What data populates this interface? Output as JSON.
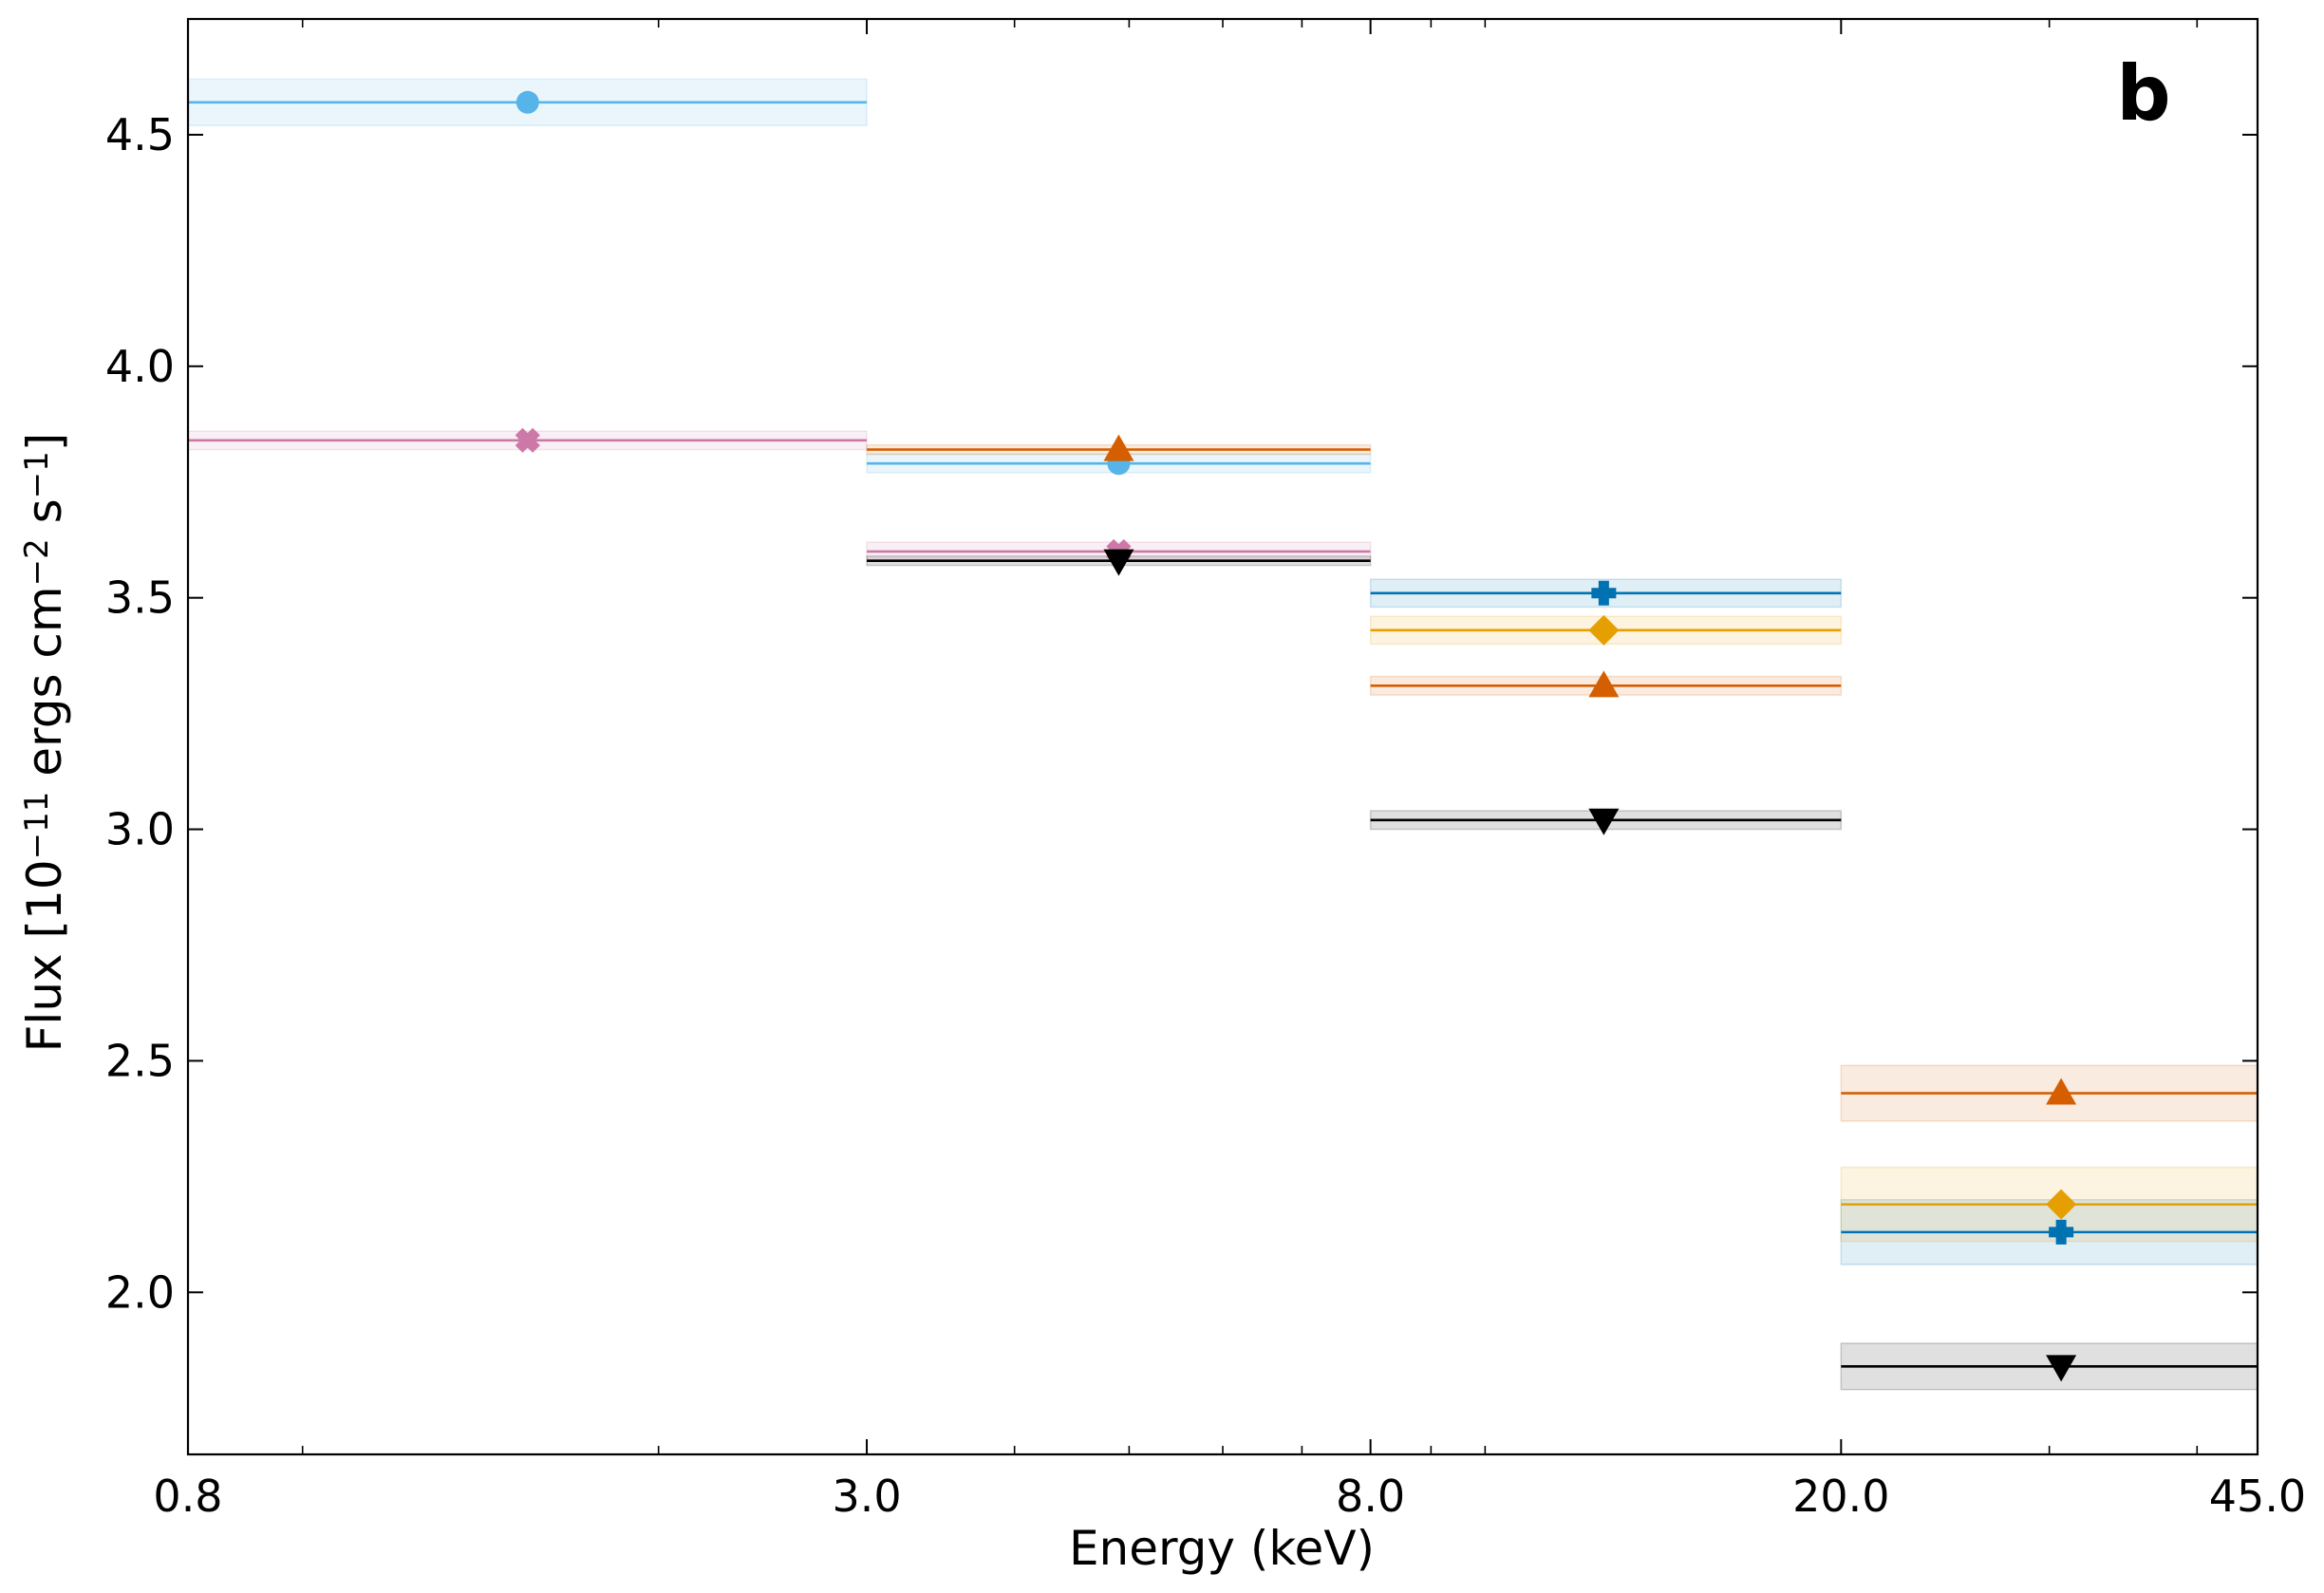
{
  "chart_data": {
    "type": "scatter",
    "panel_label": "b",
    "xlabel": "Energy (keV)",
    "ylabel": "Flux [10⁻¹¹ ergs cm⁻² s⁻¹]",
    "x_scale": "log",
    "xlim": [
      0.8,
      45.0
    ],
    "ylim": [
      1.65,
      4.75
    ],
    "x_ticks": [
      0.8,
      3.0,
      8.0,
      20.0,
      45.0
    ],
    "x_tick_labels": [
      "0.8",
      "3.0",
      "8.0",
      "20.0",
      "45.0"
    ],
    "x_minor_ticks": [
      1,
      2,
      4,
      5,
      6,
      7,
      9,
      10,
      30,
      40
    ],
    "y_ticks": [
      2.0,
      2.5,
      3.0,
      3.5,
      4.0,
      4.5
    ],
    "y_tick_labels": [
      "2.0",
      "2.5",
      "3.0",
      "3.5",
      "4.0",
      "4.5"
    ],
    "grid": false,
    "series": [
      {
        "color": "#56b4e9",
        "marker": "circle",
        "points": [
          {
            "x": 1.55,
            "xmin": 0.8,
            "xmax": 3.0,
            "y": 4.57,
            "ylo": 4.52,
            "yhi": 4.62
          },
          {
            "x": 4.9,
            "xmin": 3.0,
            "xmax": 8.0,
            "y": 3.79,
            "ylo": 3.77,
            "yhi": 3.81
          }
        ]
      },
      {
        "color": "#cc79a7",
        "marker": "x",
        "points": [
          {
            "x": 1.55,
            "xmin": 0.8,
            "xmax": 3.0,
            "y": 3.84,
            "ylo": 3.82,
            "yhi": 3.86
          },
          {
            "x": 4.9,
            "xmin": 3.0,
            "xmax": 8.0,
            "y": 3.6,
            "ylo": 3.58,
            "yhi": 3.62
          }
        ]
      },
      {
        "color": "#d55e00",
        "marker": "triangle-up",
        "points": [
          {
            "x": 4.9,
            "xmin": 3.0,
            "xmax": 8.0,
            "y": 3.82,
            "ylo": 3.81,
            "yhi": 3.83
          },
          {
            "x": 12.6,
            "xmin": 8.0,
            "xmax": 20.0,
            "y": 3.31,
            "ylo": 3.29,
            "yhi": 3.33
          },
          {
            "x": 30.7,
            "xmin": 20.0,
            "xmax": 45.0,
            "y": 2.43,
            "ylo": 2.37,
            "yhi": 2.49
          }
        ]
      },
      {
        "color": "#000000",
        "marker": "triangle-down",
        "points": [
          {
            "x": 4.9,
            "xmin": 3.0,
            "xmax": 8.0,
            "y": 3.58,
            "ylo": 3.57,
            "yhi": 3.59
          },
          {
            "x": 12.6,
            "xmin": 8.0,
            "xmax": 20.0,
            "y": 3.02,
            "ylo": 3.0,
            "yhi": 3.04
          },
          {
            "x": 30.7,
            "xmin": 20.0,
            "xmax": 45.0,
            "y": 1.84,
            "ylo": 1.79,
            "yhi": 1.89
          }
        ]
      },
      {
        "color": "#0072b2",
        "marker": "plus",
        "points": [
          {
            "x": 12.6,
            "xmin": 8.0,
            "xmax": 20.0,
            "y": 3.51,
            "ylo": 3.48,
            "yhi": 3.54
          },
          {
            "x": 30.7,
            "xmin": 20.0,
            "xmax": 45.0,
            "y": 2.13,
            "ylo": 2.06,
            "yhi": 2.2
          }
        ]
      },
      {
        "color": "#e69f00",
        "marker": "diamond",
        "points": [
          {
            "x": 12.6,
            "xmin": 8.0,
            "xmax": 20.0,
            "y": 3.43,
            "ylo": 3.4,
            "yhi": 3.46
          },
          {
            "x": 30.7,
            "xmin": 20.0,
            "xmax": 45.0,
            "y": 2.19,
            "ylo": 2.11,
            "yhi": 2.27
          }
        ]
      }
    ]
  }
}
